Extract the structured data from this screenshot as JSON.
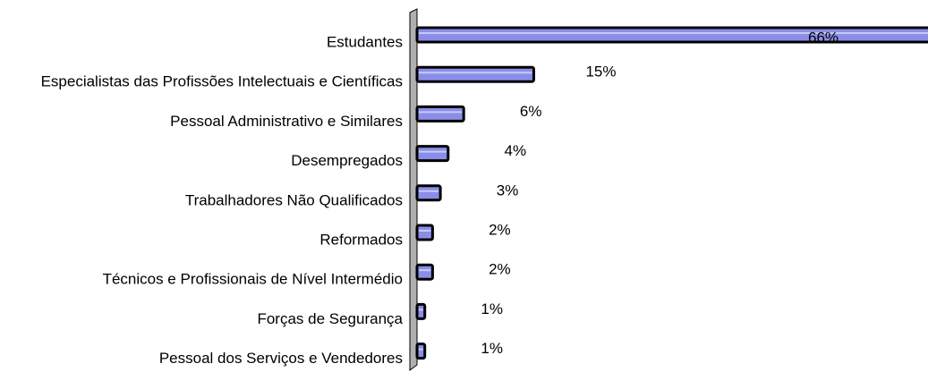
{
  "chart_data": {
    "type": "bar",
    "orientation": "horizontal",
    "color": "#8a8ee8",
    "categories": [
      "Estudantes",
      "Especialistas das Profissões Intelectuais e Científicas",
      "Pessoal Administrativo e Similares",
      "Desempregados",
      "Trabalhadores Não Qualificados",
      "Reformados",
      "Técnicos e Profissionais de Nível Intermédio",
      "Forças de Segurança",
      "Pessoal dos Serviços e Vendedores"
    ],
    "values": [
      66,
      15,
      6,
      4,
      3,
      2,
      2,
      1,
      1
    ],
    "value_labels": [
      "66%",
      "15%",
      "6%",
      "4%",
      "3%",
      "2%",
      "2%",
      "1%",
      "1%"
    ]
  }
}
